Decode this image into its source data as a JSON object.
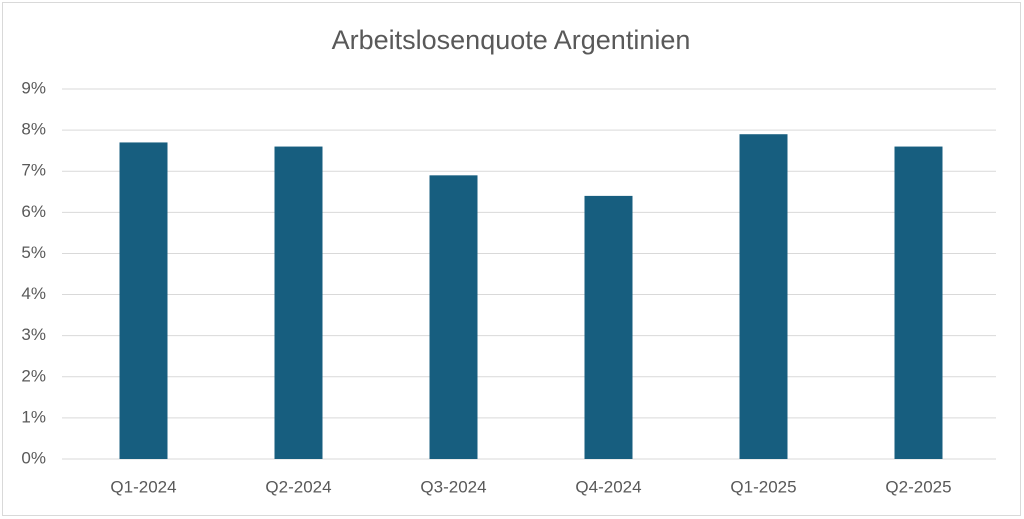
{
  "chart_data": {
    "type": "bar",
    "title": "Arbeitslosenquote Argentinien",
    "categories": [
      "Q1-2024",
      "Q2-2024",
      "Q3-2024",
      "Q4-2024",
      "Q1-2025",
      "Q2-2025"
    ],
    "values": [
      7.7,
      7.6,
      6.9,
      6.4,
      7.9,
      7.6
    ],
    "color": "#175e7f",
    "ylim": [
      0,
      9
    ],
    "yticks": [
      {
        "value": 0,
        "label": "0%"
      },
      {
        "value": 1,
        "label": "1%"
      },
      {
        "value": 2,
        "label": "2%"
      },
      {
        "value": 3,
        "label": "3%"
      },
      {
        "value": 4,
        "label": "4%"
      },
      {
        "value": 5,
        "label": "5%"
      },
      {
        "value": 6,
        "label": "6%"
      },
      {
        "value": 7,
        "label": "7%"
      },
      {
        "value": 8,
        "label": "8%"
      },
      {
        "value": 9,
        "label": "9%"
      }
    ],
    "grid": true
  }
}
